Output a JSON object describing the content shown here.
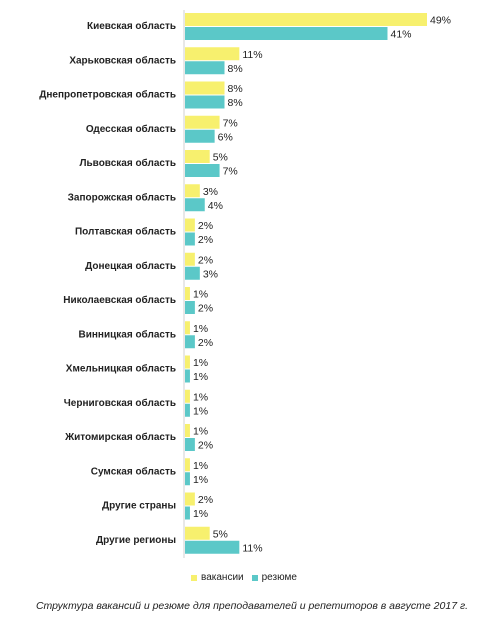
{
  "caption": "Структура вакансий и резюме для преподавателей и репетиторов в августе 2017 г.",
  "chart_data": {
    "type": "bar",
    "orientation": "horizontal",
    "categories": [
      "Киевская область",
      "Харьковская область",
      "Днепропетровская область",
      "Одесская область",
      "Львовская область",
      "Запорожская область",
      "Полтавская область",
      "Донецкая область",
      "Николаевская область",
      "Винницкая область",
      "Хмельницкая область",
      "Черниговская область",
      "Житомирская область",
      "Сумская область",
      "Другие страны",
      "Другие регионы"
    ],
    "series": [
      {
        "name": "вакансии",
        "color": "#f7f06e",
        "values": [
          49,
          11,
          8,
          7,
          5,
          3,
          2,
          2,
          1,
          1,
          1,
          1,
          1,
          1,
          2,
          5
        ]
      },
      {
        "name": "резюме",
        "color": "#5bc8c8",
        "values": [
          41,
          8,
          8,
          6,
          7,
          4,
          2,
          3,
          2,
          2,
          1,
          1,
          2,
          1,
          1,
          11
        ]
      }
    ],
    "value_suffix": "%",
    "legend_position": "bottom",
    "grid": false
  }
}
